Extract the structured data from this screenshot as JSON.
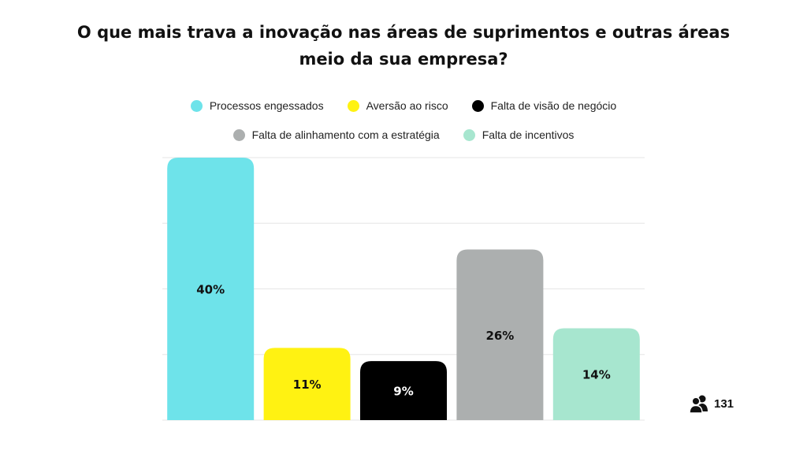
{
  "chart_data": {
    "type": "bar",
    "title": "O que mais trava a inovação nas áreas de suprimentos e outras áreas meio da sua empresa?",
    "categories": [
      "Processos engessados",
      "Aversão ao risco",
      "Falta de visão de negócio",
      "Falta de alinhamento com a estratégia",
      "Falta de incentivos"
    ],
    "values": [
      40,
      11,
      9,
      26,
      14
    ],
    "value_labels": [
      "40%",
      "11%",
      "9%",
      "26%",
      "14%"
    ],
    "colors": [
      "#6ee3ea",
      "#fff212",
      "#000000",
      "#acafaf",
      "#a7e6cf"
    ],
    "label_colors": [
      "#111111",
      "#111111",
      "#ffffff",
      "#111111",
      "#111111"
    ],
    "ylim": [
      0,
      40
    ],
    "grid": true,
    "legend_position": "top"
  },
  "respondents": {
    "icon": "users-icon",
    "count": "131"
  }
}
